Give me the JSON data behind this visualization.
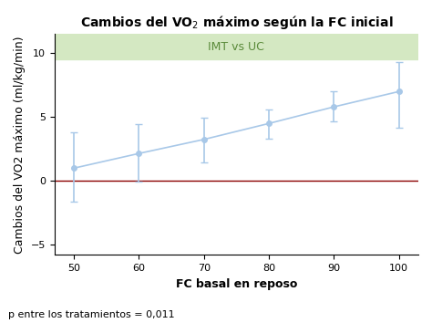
{
  "title": "Cambios del VO$_2$ máximo según la FC inicial",
  "xlabel": "FC basal en reposo",
  "ylabel": "Cambios del VO2 máximo (ml/kg/min)",
  "x": [
    50,
    60,
    70,
    80,
    90,
    100
  ],
  "y": [
    1.0,
    2.15,
    3.25,
    4.5,
    5.8,
    7.0
  ],
  "yerr_low": [
    2.6,
    2.2,
    1.8,
    1.2,
    1.1,
    2.8
  ],
  "yerr_high": [
    2.8,
    2.3,
    1.7,
    1.1,
    1.2,
    2.3
  ],
  "line_color": "#a8c8e8",
  "marker_color": "#a8c8e8",
  "red_line_y": 0,
  "green_band_ymin": 9.5,
  "green_band_ymax": 11.5,
  "green_band_color": "#d4e8c2",
  "green_band_label": "IMT vs UC",
  "green_label_color": "#5a8a3a",
  "red_line_color": "#8b0000",
  "xlim": [
    47,
    103
  ],
  "ylim": [
    -5.8,
    11.5
  ],
  "xticks": [
    50,
    60,
    70,
    80,
    90,
    100
  ],
  "yticks": [
    -5,
    0,
    5,
    10
  ],
  "footer_text": "p entre los tratamientos = 0,011",
  "title_fontsize": 10,
  "label_fontsize": 9,
  "tick_fontsize": 8,
  "footer_fontsize": 8,
  "green_label_fontsize": 9
}
